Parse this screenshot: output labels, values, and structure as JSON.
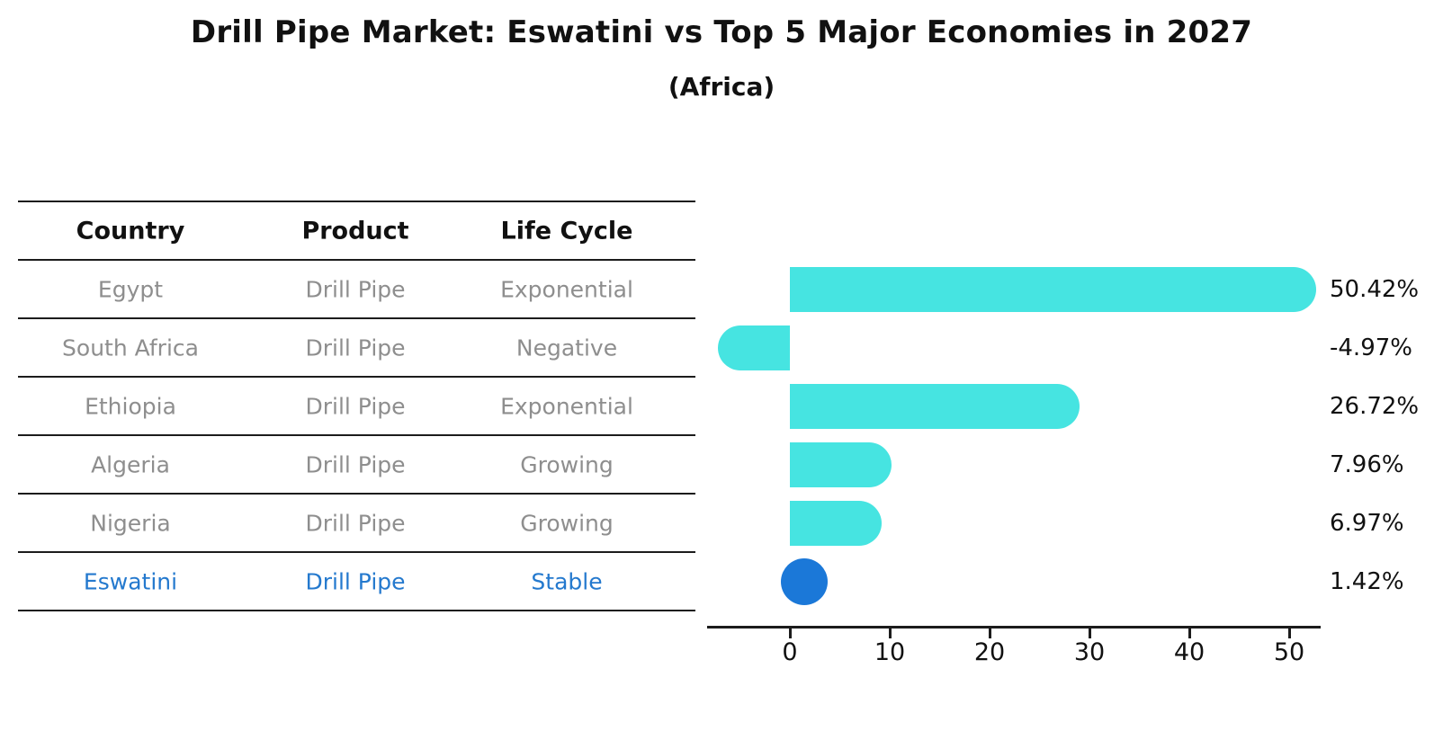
{
  "title": "Drill Pipe Market: Eswatini vs Top 5 Major Economies in 2027",
  "subtitle": "(Africa)",
  "table": {
    "columns": [
      "Country",
      "Product",
      "Life Cycle"
    ],
    "rows": [
      {
        "country": "Egypt",
        "product": "Drill Pipe",
        "life_cycle": "Exponential",
        "highlight": false
      },
      {
        "country": "South Africa",
        "product": "Drill Pipe",
        "life_cycle": "Negative",
        "highlight": false
      },
      {
        "country": "Ethiopia",
        "product": "Drill Pipe",
        "life_cycle": "Exponential",
        "highlight": false
      },
      {
        "country": "Algeria",
        "product": "Drill Pipe",
        "life_cycle": "Growing",
        "highlight": false
      },
      {
        "country": "Nigeria",
        "product": "Drill Pipe",
        "life_cycle": "Growing",
        "highlight": false
      },
      {
        "country": "Eswatini",
        "product": "Drill Pipe",
        "life_cycle": "Stable",
        "highlight": true
      }
    ]
  },
  "chart_data": {
    "type": "bar",
    "orientation": "horizontal",
    "title": "Drill Pipe Market: Eswatini vs Top 5 Major Economies in 2027 (Africa)",
    "categories": [
      "Egypt",
      "South Africa",
      "Ethiopia",
      "Algeria",
      "Nigeria",
      "Eswatini"
    ],
    "values": [
      50.42,
      -4.97,
      26.72,
      7.96,
      6.97,
      1.42
    ],
    "value_labels": [
      "50.42%",
      "-4.97%",
      "26.72%",
      "7.96%",
      "6.97%",
      "1.42%"
    ],
    "x_ticks": [
      0,
      10,
      20,
      30,
      40,
      50
    ],
    "x_tick_labels": [
      "0",
      "10",
      "20",
      "30",
      "40",
      "50"
    ],
    "xlim": [
      -8.3,
      53.2
    ],
    "grid": false,
    "legend": "none",
    "highlight_index": 5,
    "highlight_marker": "circle",
    "bar_color": "#46e4e1",
    "highlight_color": "#1b78d8"
  },
  "colors": {
    "background": "#ffffff",
    "bar": "#46e4e1",
    "highlight": "#1b78d8",
    "highlight_text": "#2479ce",
    "table_text": "#8e8e8e",
    "header_text": "#111111",
    "line": "#1c1c1c"
  }
}
